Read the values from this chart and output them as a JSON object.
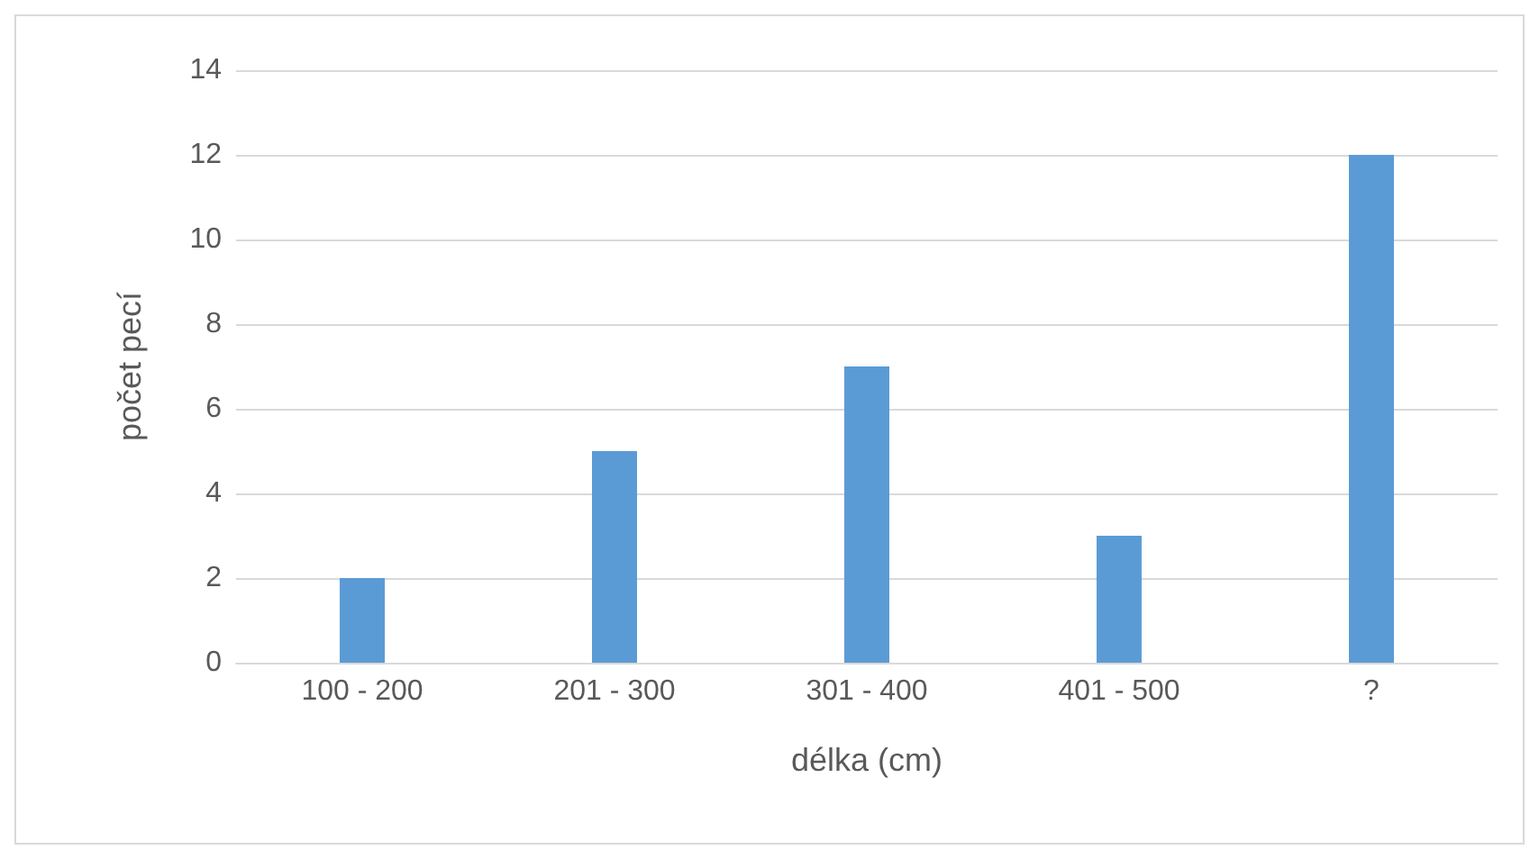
{
  "chart_data": {
    "type": "bar",
    "xlabel": "délka (cm)",
    "ylabel": "počet pecí",
    "categories": [
      "100 - 200",
      "201 - 300",
      "301 - 400",
      "401 - 500",
      "?"
    ],
    "values": [
      2,
      5,
      7,
      3,
      12
    ],
    "color": "#5b9bd5",
    "ylim": [
      0,
      14
    ],
    "yticks": [
      0,
      2,
      4,
      6,
      8,
      10,
      12,
      14
    ],
    "grid": "y"
  }
}
